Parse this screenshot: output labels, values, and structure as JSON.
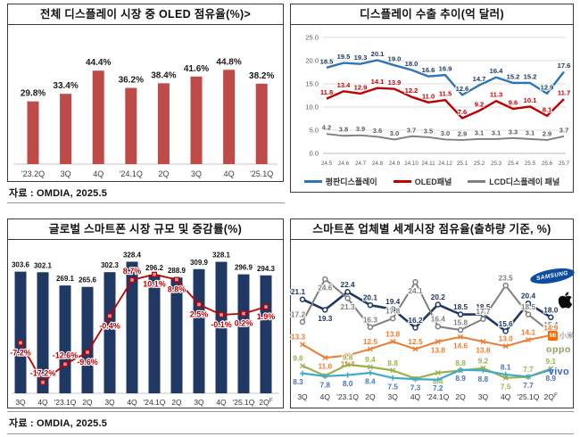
{
  "sources": {
    "top": "자료 : OMDIA, 2025.5",
    "bottom": "자료 : OMDIA, 2025.5"
  },
  "logos": {
    "samsung": "SAMSUNG",
    "xiaomi_mi": "MI",
    "xiaomi_cjk": "小米",
    "oppo": "oppo",
    "vivo": "vivo"
  },
  "chart_data": [
    {
      "id": "oled-share",
      "type": "bar",
      "title": "전체 디스플레이 시장 중 OLED 점유율(%)>",
      "categories": [
        "'23.2Q",
        "3Q",
        "4Q",
        "'24.1Q",
        "2Q",
        "3Q",
        "4Q",
        "'25.1Q"
      ],
      "values": [
        29.8,
        33.4,
        44.4,
        36.2,
        38.4,
        41.6,
        44.8,
        38.2
      ],
      "label_suffix": "%",
      "ylim": [
        0,
        50
      ],
      "grid": false,
      "bar_color": "#be4b48"
    },
    {
      "id": "display-export",
      "type": "line",
      "title": "디스플레이 수출 추이(억 달러)",
      "categories": [
        "24.5",
        "24.6",
        "24.7",
        "24.8",
        "24.9",
        "24.10",
        "24.11",
        "24.12",
        "25.1",
        "25.2",
        "25.3",
        "25.4",
        "25.5",
        "25.6",
        "25.7"
      ],
      "yticks": [
        0,
        5,
        10,
        15,
        20,
        25
      ],
      "ytick_labels": [
        "0.0",
        "5.0",
        "10.0",
        "15.0",
        "20.0",
        "25.0"
      ],
      "ylim": [
        0,
        25
      ],
      "grid": true,
      "legend_position": "bottom",
      "series": [
        {
          "name": "평판디스플레이",
          "color": "#2e75b6",
          "label_color": "#17375e",
          "stroke_width": 2.4,
          "values": [
            18.5,
            19.5,
            19.3,
            20.1,
            19.0,
            18.0,
            16.6,
            16.9,
            12.6,
            14.7,
            16.4,
            15.2,
            15.2,
            12.9,
            17.6
          ]
        },
        {
          "name": "OLED패널",
          "color": "#c00000",
          "label_color": "#c00000",
          "stroke_width": 2.4,
          "values": [
            11.8,
            13.4,
            12.9,
            14.1,
            13.9,
            12.2,
            11.0,
            11.5,
            7.6,
            9.2,
            11.3,
            9.6,
            10.1,
            8.1,
            11.7
          ]
        },
        {
          "name": "LCD디스플레이 패널",
          "color": "#7f7f7f",
          "label_color": "#595959",
          "stroke_width": 1.9,
          "values": [
            4.2,
            3.8,
            3.9,
            3.6,
            3.0,
            3.7,
            3.5,
            3.0,
            2.9,
            3.1,
            3.1,
            3.3,
            3.1,
            2.9,
            3.7
          ]
        }
      ]
    },
    {
      "id": "smartphone-market",
      "type": "bar+line",
      "title": "글로벌 스마트폰 시장 규모 및 증감률(%)",
      "categories": [
        "3Q",
        "4Q",
        "'23.1Q",
        "2Q",
        "3Q",
        "4Q",
        "'24.1Q",
        "2Q",
        "3Q",
        "4Q",
        "'25.1Q",
        "2Q"
      ],
      "last_sup": "F",
      "bars": {
        "name": "시장 규모",
        "color": "#1f3864",
        "ylim": [
          0,
          345
        ],
        "values": [
          303.6,
          302.1,
          269.1,
          265.6,
          302.3,
          328.4,
          296.2,
          288.9,
          309.9,
          328.1,
          296.9,
          294.3
        ]
      },
      "line": {
        "name": "증감률",
        "color": "#c00000",
        "suffix": "%",
        "ylim": [
          -22,
          15
        ],
        "values": [
          -7.2,
          -17.2,
          -12.6,
          -9.6,
          -0.4,
          8.7,
          10.1,
          8.8,
          2.5,
          -0.1,
          0.2,
          1.9
        ],
        "label_pos": [
          "b",
          "a",
          "a",
          "b",
          "b",
          "a",
          "b",
          "b",
          "b",
          "b",
          "b",
          "b"
        ]
      }
    },
    {
      "id": "vendor-share",
      "type": "line",
      "title": "스마트폰 업체별 세계시장 점유율(출하량 기준, %)",
      "categories": [
        "3Q",
        "4Q",
        "'23.1Q",
        "2Q",
        "3Q",
        "4Q",
        "'24.1Q",
        "2Q",
        "3Q",
        "4Q",
        "'25.1Q",
        "2Q"
      ],
      "last_sup": "F",
      "ylim": [
        5,
        28
      ],
      "grid": false,
      "series": [
        {
          "name": "Samsung",
          "color": "#1f3864",
          "label_color": "#1f3864",
          "marker": "o",
          "stroke_width": 2.6,
          "values": [
            21.1,
            19.3,
            22.4,
            20.1,
            19.4,
            16.2,
            20.2,
            18.5,
            18.5,
            15.6,
            20.4,
            18.0
          ],
          "label_pos": [
            "a",
            "b",
            "a",
            "a",
            "a",
            "a",
            "a",
            "a",
            "a",
            "a",
            "a",
            "a"
          ]
        },
        {
          "name": "Apple",
          "color": "#7f7f7f",
          "label_color": "#7f7f7f",
          "marker": "o",
          "stroke_width": 2.0,
          "values": [
            17.2,
            24.6,
            21.3,
            16.3,
            17.8,
            24.1,
            16.4,
            15.8,
            17.7,
            23.5,
            18.5,
            15.4
          ],
          "label_pos": [
            "a",
            "b",
            "b",
            "a",
            "a",
            "b",
            "a",
            "a",
            "a",
            "a",
            "a",
            "a"
          ]
        },
        {
          "name": "Xiaomi",
          "color": "#ed7d31",
          "label_color": "#ed7d31",
          "marker": "x",
          "stroke_width": 2.0,
          "values": [
            13.3,
            11.0,
            11.4,
            12.5,
            13.8,
            12.5,
            13.8,
            14.6,
            13.8,
            13.0,
            14.1,
            14.9
          ],
          "label_pos": [
            "a",
            "b",
            "b",
            "a",
            "a",
            "a",
            "b",
            "b",
            "b",
            "a",
            "a",
            "a"
          ]
        },
        {
          "name": "OPPO",
          "color": "#9bb24c",
          "label_color": "#9bb24c",
          "marker": "x",
          "stroke_width": 2.2,
          "values": [
            9.6,
            7.9,
            9.8,
            9.4,
            8.8,
            7.4,
            8.4,
            8.8,
            9.2,
            7.5,
            7.7,
            9.1
          ],
          "label_pos": [
            "a",
            "b",
            "a",
            "a",
            "a",
            "b",
            "b",
            "a",
            "a",
            "b",
            "a",
            "a"
          ]
        },
        {
          "name": "vivo",
          "color": "#40aac8",
          "label_color": "#4472c4",
          "marker": "+",
          "stroke_width": 2.2,
          "values": [
            8.3,
            7.8,
            8.0,
            8.4,
            7.5,
            7.3,
            7.2,
            8.9,
            8.8,
            8.1,
            7.7,
            8.9
          ],
          "label_pos": [
            "b",
            "b",
            "b",
            "b",
            "b",
            "b",
            "b",
            "b",
            "b",
            "a",
            "b",
            "b"
          ]
        }
      ]
    }
  ]
}
